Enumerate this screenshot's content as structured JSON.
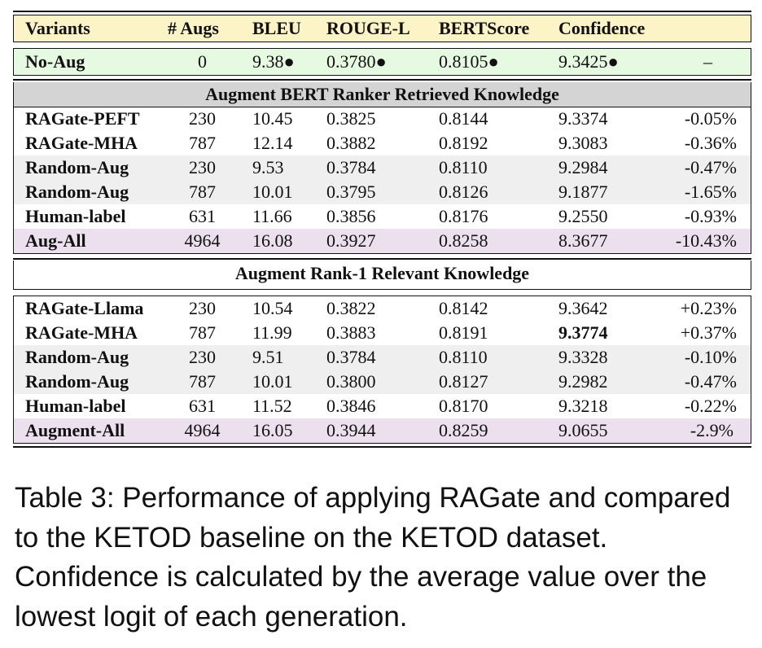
{
  "table": {
    "headers": [
      "Variants",
      "# Augs",
      "BLEU",
      "ROUGE-L",
      "BERTScore",
      "Confidence",
      ""
    ],
    "baseline": [
      "No-Aug",
      "0",
      "9.38●",
      "0.3780●",
      "0.8105●",
      "9.3425●",
      "–"
    ],
    "section1": {
      "title": "Augment BERT Ranker Retrieved Knowledge",
      "rows": [
        [
          "RAGate-PEFT",
          "230",
          "10.45",
          "0.3825",
          "0.8144",
          "9.3374",
          "-0.05%"
        ],
        [
          "RAGate-MHA",
          "787",
          "12.14",
          "0.3882",
          "0.8192",
          "9.3083",
          "-0.36%"
        ],
        [
          "Random-Aug",
          "230",
          "9.53",
          "0.3784",
          "0.8110",
          "9.2984",
          "-0.47%"
        ],
        [
          "Random-Aug",
          "787",
          "10.01",
          "0.3795",
          "0.8126",
          "9.1877",
          "-1.65%"
        ],
        [
          "Human-label",
          "631",
          "11.66",
          "0.3856",
          "0.8176",
          "9.2550",
          "-0.93%"
        ],
        [
          "Aug-All",
          "4964",
          "16.08",
          "0.3927",
          "0.8258",
          "8.3677",
          "-10.43%"
        ]
      ]
    },
    "section2": {
      "title": "Augment Rank-1 Relevant Knowledge",
      "rows": [
        [
          "RAGate-Llama",
          "230",
          "10.54",
          "0.3822",
          "0.8142",
          "9.3642",
          "+0.23%"
        ],
        [
          "RAGate-MHA",
          "787",
          "11.99",
          "0.3883",
          "0.8191",
          "9.3774",
          "+0.37%"
        ],
        [
          "Random-Aug",
          "230",
          "9.51",
          "0.3784",
          "0.8110",
          "9.3328",
          "-0.10%"
        ],
        [
          "Random-Aug",
          "787",
          "10.01",
          "0.3800",
          "0.8127",
          "9.2982",
          "-0.47%"
        ],
        [
          "Human-label",
          "631",
          "11.52",
          "0.3846",
          "0.8170",
          "9.3218",
          "-0.22%"
        ],
        [
          "Augment-All",
          "4964",
          "16.05",
          "0.3944",
          "0.8259",
          "9.0655",
          "-2.9%"
        ]
      ]
    }
  },
  "caption": "Table 3: Performance of applying RAGate and compared to the KETOD baseline on the KETOD dataset. Confidence is calculated by the average value over the lowest logit of each generation.",
  "colors": {
    "header_bg": "#fcf3c7",
    "baseline_bg": "#e6f9e1",
    "section_bg": "#d4d4d4",
    "alt_row_bg": "#efefef",
    "all_row_bg": "#ece0ee"
  }
}
